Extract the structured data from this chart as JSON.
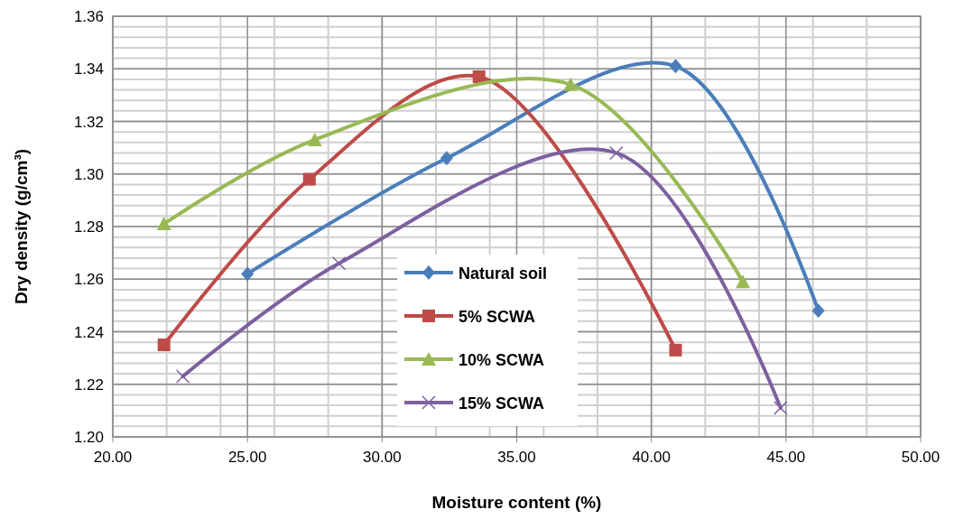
{
  "chart_data": {
    "type": "line",
    "xlabel": "Moisture content (%)",
    "ylabel": "Dry density (g/cm³)",
    "xlim": [
      20,
      50
    ],
    "xticks": [
      {
        "value": 20,
        "label": "20.00"
      },
      {
        "value": 25,
        "label": "25.00"
      },
      {
        "value": 30,
        "label": "30.00"
      },
      {
        "value": 35,
        "label": "35.00"
      },
      {
        "value": 40,
        "label": "40.00"
      },
      {
        "value": 45,
        "label": "45.00"
      },
      {
        "value": 50,
        "label": "50.00"
      }
    ],
    "ylim": [
      1.2,
      1.36
    ],
    "yticks": [
      {
        "value": 1.2,
        "label": "1.20"
      },
      {
        "value": 1.22,
        "label": "1.22"
      },
      {
        "value": 1.24,
        "label": "1.24"
      },
      {
        "value": 1.26,
        "label": "1.26"
      },
      {
        "value": 1.28,
        "label": "1.28"
      },
      {
        "value": 1.3,
        "label": "1.30"
      },
      {
        "value": 1.32,
        "label": "1.32"
      },
      {
        "value": 1.34,
        "label": "1.34"
      },
      {
        "value": 1.36,
        "label": "1.36"
      }
    ],
    "grid": true,
    "legend": "bottom",
    "series": [
      {
        "name": "Natural soil",
        "color": "#4a7ebb",
        "marker": "diamond",
        "x": [
          25.0,
          32.4,
          40.9,
          46.2
        ],
        "values": [
          1.262,
          1.306,
          1.341,
          1.248
        ]
      },
      {
        "name": "5% SCWA",
        "color": "#be4b48",
        "marker": "square",
        "x": [
          21.9,
          27.3,
          33.6,
          40.9
        ],
        "values": [
          1.235,
          1.298,
          1.337,
          1.233
        ]
      },
      {
        "name": "10% SCWA",
        "color": "#98b954",
        "marker": "triangle",
        "x": [
          21.9,
          27.5,
          37.0,
          43.4
        ],
        "values": [
          1.281,
          1.313,
          1.334,
          1.259
        ]
      },
      {
        "name": "15% SCWA",
        "color": "#7d60a0",
        "marker": "cross",
        "x": [
          22.6,
          28.4,
          38.7,
          44.8
        ],
        "values": [
          1.223,
          1.266,
          1.308,
          1.211
        ]
      }
    ]
  }
}
